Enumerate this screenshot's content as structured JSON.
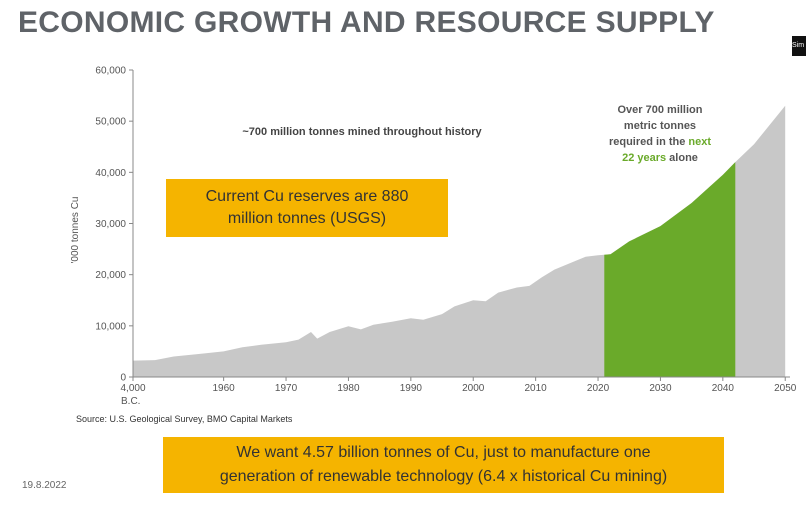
{
  "title": "ECONOMIC GROWTH AND RESOURCE SUPPLY",
  "corner_label": "Sim",
  "source": "Source: U.S. Geological Survey, BMO Capital Markets",
  "date": "19.8.2022",
  "box1": {
    "line1": "Current Cu reserves are 880",
    "line2": "million tonnes (USGS)"
  },
  "box2": {
    "line1": "We want 4.57 billion tonnes of Cu, just to manufacture one",
    "line2": "generation of renewable technology (6.4 x historical Cu mining)"
  },
  "colors": {
    "historical": "#c8c8c8",
    "future_green": "#6aaa2a",
    "box": "#f5b400"
  },
  "chart_data": {
    "type": "area",
    "ylabel": "'000 tonnes Cu",
    "ylim": [
      0,
      60000
    ],
    "yticks": [
      "0",
      "10,000",
      "20,000",
      "30,000",
      "40,000",
      "50,000",
      "60,000"
    ],
    "xticks": [
      {
        "x": -4000,
        "label": "4,000",
        "sublabel": "B.C."
      },
      {
        "x": 1960,
        "label": "1960"
      },
      {
        "x": 1970,
        "label": "1970"
      },
      {
        "x": 1980,
        "label": "1980"
      },
      {
        "x": 1990,
        "label": "1990"
      },
      {
        "x": 2000,
        "label": "2000"
      },
      {
        "x": 2010,
        "label": "2010"
      },
      {
        "x": 2020,
        "label": "2020"
      },
      {
        "x": 2030,
        "label": "2030"
      },
      {
        "x": 2040,
        "label": "2040"
      },
      {
        "x": 2050,
        "label": "2050"
      }
    ],
    "historical": [
      [
        -4000,
        3200
      ],
      [
        1949,
        3300
      ],
      [
        1952,
        4000
      ],
      [
        1956,
        4500
      ],
      [
        1960,
        5000
      ],
      [
        1963,
        5800
      ],
      [
        1966,
        6300
      ],
      [
        1970,
        6800
      ],
      [
        1972,
        7300
      ],
      [
        1974,
        8800
      ],
      [
        1975,
        7500
      ],
      [
        1977,
        8800
      ],
      [
        1980,
        9900
      ],
      [
        1982,
        9300
      ],
      [
        1984,
        10200
      ],
      [
        1987,
        10800
      ],
      [
        1990,
        11500
      ],
      [
        1992,
        11200
      ],
      [
        1995,
        12300
      ],
      [
        1997,
        13800
      ],
      [
        2000,
        15000
      ],
      [
        2002,
        14800
      ],
      [
        2004,
        16500
      ],
      [
        2007,
        17500
      ],
      [
        2009,
        17800
      ],
      [
        2011,
        19500
      ],
      [
        2013,
        21000
      ],
      [
        2016,
        22500
      ],
      [
        2018,
        23500
      ],
      [
        2020,
        23800
      ]
    ],
    "projection": [
      [
        2020,
        23800
      ],
      [
        2022,
        24000
      ],
      [
        2025,
        26500
      ],
      [
        2030,
        29500
      ],
      [
        2035,
        34000
      ],
      [
        2040,
        39500
      ],
      [
        2042,
        42000
      ],
      [
        2045,
        45500
      ],
      [
        2050,
        53000
      ]
    ],
    "green_range": [
      2021,
      2042
    ],
    "annotations": {
      "mined": "~700 million tonnes mined throughout history",
      "required": {
        "line1": "Over 700 million",
        "line2": "metric tonnes",
        "line3_pre": "required in the ",
        "line3_highlight": "next",
        "line4_highlight": "22 years",
        "line4_post": " alone"
      }
    }
  }
}
